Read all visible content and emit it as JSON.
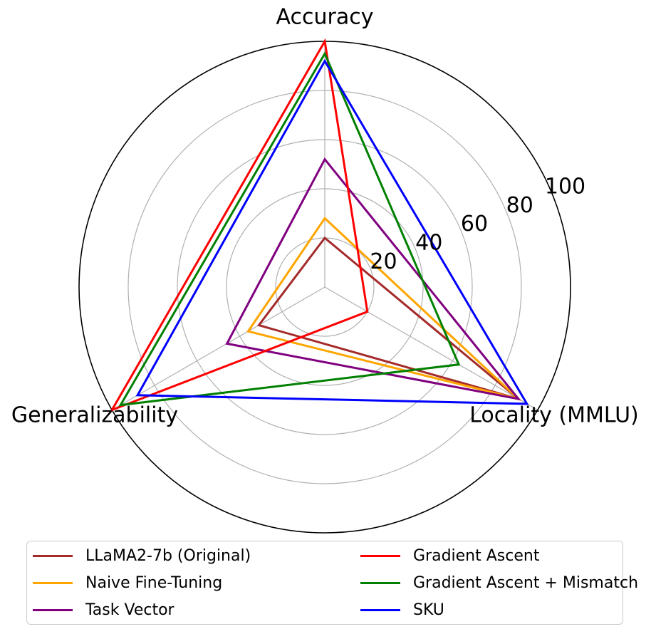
{
  "chart_data": {
    "type": "radar",
    "axes": [
      "Accuracy",
      "Locality (MMLU)",
      "Generalizability"
    ],
    "radial_ticks": [
      "20",
      "40",
      "60",
      "80",
      "100"
    ],
    "rlim": [
      0,
      100
    ],
    "grid": true,
    "legend_placement": "bottom",
    "series": [
      {
        "name": "LLaMA2-7b (Original)",
        "color": "#a52a2a",
        "values": [
          20,
          91,
          31
        ]
      },
      {
        "name": "Naive Fine-Tuning",
        "color": "#ffa500",
        "values": [
          28,
          91,
          36
        ]
      },
      {
        "name": "Task Vector",
        "color": "#800080",
        "values": [
          52,
          91,
          46
        ]
      },
      {
        "name": "Gradient Ascent",
        "color": "#ff0000",
        "values": [
          100,
          20,
          100
        ]
      },
      {
        "name": "Gradient Ascent + Mismatch",
        "color": "#008000",
        "values": [
          95,
          63,
          96
        ]
      },
      {
        "name": "SKU",
        "color": "#0000ff",
        "values": [
          92,
          95,
          88
        ]
      }
    ]
  }
}
